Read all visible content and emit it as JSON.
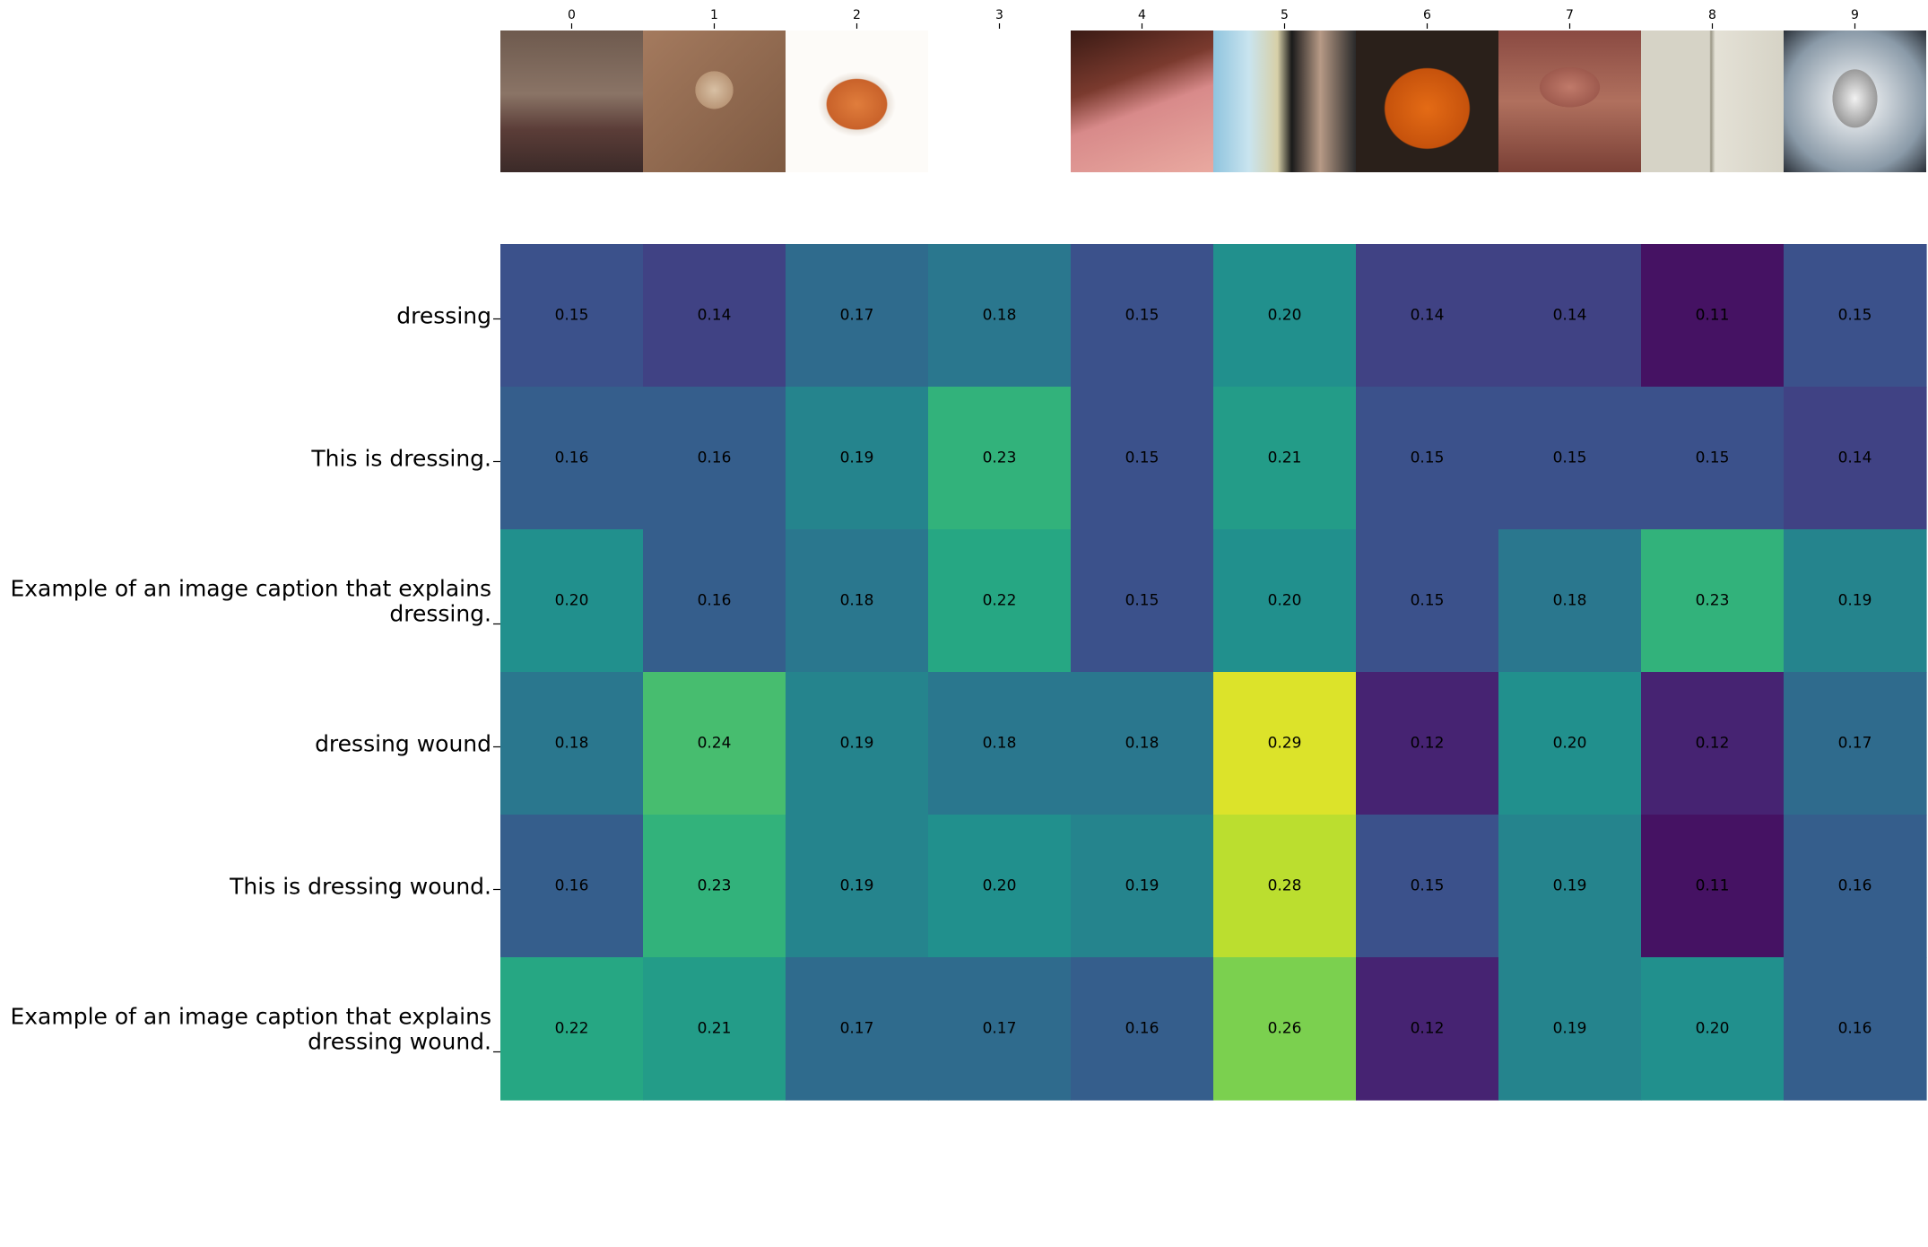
{
  "chart_data": {
    "type": "heatmap",
    "title": "",
    "xlabel": "",
    "ylabel": "",
    "x_tick_labels": [
      "0",
      "1",
      "2",
      "3",
      "4",
      "5",
      "6",
      "7",
      "8",
      "9"
    ],
    "y_tick_labels": [
      "dressing",
      "This is dressing.",
      "Example of an image caption that explains dressing.",
      "dressing wound",
      "This is dressing wound.",
      "Example of an image caption that explains dressing wound."
    ],
    "values": [
      [
        0.15,
        0.14,
        0.17,
        0.18,
        0.15,
        0.2,
        0.14,
        0.14,
        0.11,
        0.15
      ],
      [
        0.16,
        0.16,
        0.19,
        0.23,
        0.15,
        0.21,
        0.15,
        0.15,
        0.15,
        0.14
      ],
      [
        0.2,
        0.16,
        0.18,
        0.22,
        0.15,
        0.2,
        0.15,
        0.18,
        0.23,
        0.19
      ],
      [
        0.18,
        0.24,
        0.19,
        0.18,
        0.18,
        0.29,
        0.12,
        0.2,
        0.12,
        0.17
      ],
      [
        0.16,
        0.23,
        0.19,
        0.2,
        0.19,
        0.28,
        0.15,
        0.19,
        0.11,
        0.16
      ],
      [
        0.22,
        0.21,
        0.17,
        0.17,
        0.16,
        0.26,
        0.12,
        0.19,
        0.2,
        0.16
      ]
    ],
    "colormap": "viridis",
    "color_range": [
      0.1,
      0.3
    ],
    "value_label_format": "2 decimals",
    "colorbar": false,
    "grid": false,
    "x_axis_position": "top",
    "column_images": [
      "girl-standing-photo",
      "blister-closeup-photo",
      "sauce-bowl-photo",
      "salad-dressing-bottle-photo",
      "red-cheek-face-photo",
      "wound-dressing-package-photo",
      "stuffed-pepper-photo",
      "rash-face-closeup-photo",
      "tomato-plants-photo",
      "man-portrait-photo"
    ]
  }
}
